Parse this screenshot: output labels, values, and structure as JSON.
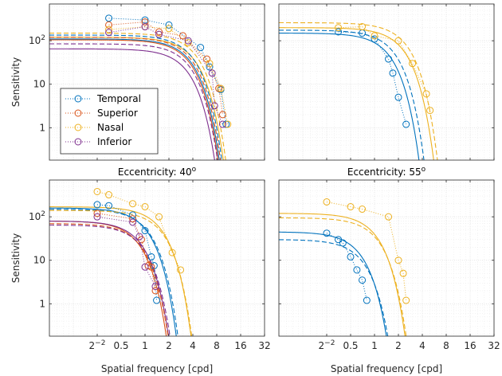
{
  "chart_data": {
    "type": "line",
    "xscale": "log2",
    "yscale": "log10",
    "xlim": [
      0.0625,
      32
    ],
    "ylim": [
      0.18,
      700
    ],
    "xticks": [
      0.25,
      0.5,
      1,
      2,
      4,
      8,
      16,
      32
    ],
    "xtick_labels": [
      "2^-2",
      "0.5",
      "1",
      "2",
      "4",
      "8",
      "16",
      "32"
    ],
    "yticks": [
      1,
      10,
      100
    ],
    "ytick_labels": [
      "1",
      "10",
      "10^2"
    ],
    "xlabel": "Spatial frequency [cpd]",
    "ylabel": "Sensitivity",
    "grid": true,
    "series_names": [
      "Temporal",
      "Superior",
      "Nasal",
      "Inferior"
    ],
    "colors": {
      "Temporal": "#0072BD",
      "Superior": "#D95319",
      "Nasal": "#EDB120",
      "Inferior": "#7E2F8E"
    },
    "legend": {
      "panel": 0,
      "placement": "lower-left"
    },
    "panels": [
      {
        "title": "",
        "measured": {
          "Temporal": [
            [
              0.35,
              330
            ],
            [
              1.0,
              300
            ],
            [
              2.0,
              230
            ],
            [
              5.0,
              70
            ],
            [
              6.5,
              25
            ],
            [
              9.0,
              7.5
            ],
            [
              10.5,
              1.2
            ]
          ],
          "Superior": [
            [
              0.35,
              230
            ],
            [
              1.0,
              270
            ],
            [
              1.5,
              160
            ],
            [
              3.0,
              130
            ],
            [
              6.0,
              38
            ],
            [
              8.5,
              8
            ],
            [
              9.5,
              2
            ]
          ],
          "Nasal": [
            [
              0.35,
              180
            ],
            [
              1.0,
              210
            ],
            [
              2.0,
              190
            ],
            [
              3.5,
              90
            ],
            [
              6.5,
              30
            ],
            [
              9.0,
              8
            ],
            [
              11.0,
              1.2
            ]
          ],
          "Inferior": [
            [
              0.35,
              155
            ],
            [
              1.0,
              210
            ],
            [
              1.5,
              140
            ],
            [
              3.5,
              100
            ],
            [
              7.0,
              18
            ],
            [
              7.5,
              3.2
            ],
            [
              9.5,
              1.2
            ]
          ]
        },
        "fit_solid": {
          "Temporal": {
            "peak": 110,
            "fc": 3.4
          },
          "Superior": {
            "peak": 105,
            "fc": 3.3
          },
          "Nasal": {
            "peak": 120,
            "fc": 3.8
          },
          "Inferior": {
            "peak": 65,
            "fc": 3.1
          }
        },
        "fit_dashed": {
          "Temporal": {
            "peak": 135,
            "fc": 3.6
          },
          "Superior": {
            "peak": 120,
            "fc": 3.5
          },
          "Nasal": {
            "peak": 150,
            "fc": 4.0
          },
          "Inferior": {
            "peak": 85,
            "fc": 3.3
          }
        }
      },
      {
        "title": "",
        "measured": {
          "Temporal": [
            [
              0.35,
              160
            ],
            [
              0.7,
              150
            ],
            [
              1.0,
              110
            ],
            [
              1.5,
              38
            ],
            [
              1.7,
              18
            ],
            [
              2.0,
              5
            ],
            [
              2.5,
              1.2
            ]
          ],
          "Nasal": [
            [
              0.35,
              200
            ],
            [
              0.7,
              210
            ],
            [
              1.0,
              130
            ],
            [
              2.0,
              100
            ],
            [
              3.0,
              30
            ],
            [
              4.5,
              6
            ],
            [
              5.0,
              2.5
            ]
          ]
        },
        "fit_solid": {
          "Temporal": {
            "peak": 150,
            "fc": 1.4
          },
          "Nasal": {
            "peak": 200,
            "fc": 2.1
          }
        },
        "fit_dashed": {
          "Temporal": {
            "peak": 175,
            "fc": 1.6
          },
          "Nasal": {
            "peak": 260,
            "fc": 2.3
          }
        }
      },
      {
        "title": "Eccentricity: 40°",
        "measured": {
          "Temporal": [
            [
              0.25,
              190
            ],
            [
              0.35,
              180
            ],
            [
              0.7,
              110
            ],
            [
              1.0,
              48
            ],
            [
              1.2,
              12
            ],
            [
              1.3,
              7.5
            ],
            [
              1.4,
              1.2
            ]
          ],
          "Superior": [
            [
              0.25,
              120
            ],
            [
              0.7,
              90
            ],
            [
              0.9,
              30
            ],
            [
              1.1,
              7.5
            ],
            [
              1.2,
              7
            ],
            [
              1.35,
              2
            ]
          ],
          "Nasal": [
            [
              0.25,
              380
            ],
            [
              0.35,
              320
            ],
            [
              0.7,
              200
            ],
            [
              1.0,
              170
            ],
            [
              1.5,
              100
            ],
            [
              2.2,
              15
            ],
            [
              2.8,
              6
            ]
          ],
          "Inferior": [
            [
              0.25,
              100
            ],
            [
              0.7,
              75
            ],
            [
              0.85,
              35
            ],
            [
              1.0,
              7
            ],
            [
              1.35,
              2.5
            ]
          ]
        },
        "fit_solid": {
          "Temporal": {
            "peak": 160,
            "fc": 0.95
          },
          "Superior": {
            "peak": 80,
            "fc": 0.75
          },
          "Nasal": {
            "peak": 170,
            "fc": 1.45
          },
          "Inferior": {
            "peak": 80,
            "fc": 0.8
          }
        },
        "fit_dashed": {
          "Temporal": {
            "peak": 150,
            "fc": 1.0
          },
          "Superior": {
            "peak": 70,
            "fc": 0.8
          },
          "Nasal": {
            "peak": 140,
            "fc": 1.5
          },
          "Inferior": {
            "peak": 65,
            "fc": 0.85
          }
        }
      },
      {
        "title": "Eccentricity: 55°",
        "measured": {
          "Temporal": [
            [
              0.25,
              42
            ],
            [
              0.35,
              30
            ],
            [
              0.4,
              25
            ],
            [
              0.5,
              12
            ],
            [
              0.6,
              6
            ],
            [
              0.7,
              3.5
            ],
            [
              0.8,
              1.2
            ]
          ],
          "Nasal": [
            [
              0.25,
              220
            ],
            [
              0.5,
              170
            ],
            [
              0.7,
              150
            ],
            [
              1.5,
              100
            ],
            [
              2.0,
              10
            ],
            [
              2.3,
              5
            ],
            [
              2.5,
              1.2
            ]
          ]
        },
        "fit_solid": {
          "Temporal": {
            "peak": 45,
            "fc": 0.6
          },
          "Nasal": {
            "peak": 120,
            "fc": 0.95
          }
        },
        "fit_dashed": {
          "Temporal": {
            "peak": 30,
            "fc": 0.65
          },
          "Nasal": {
            "peak": 95,
            "fc": 1.0
          }
        }
      }
    ]
  }
}
